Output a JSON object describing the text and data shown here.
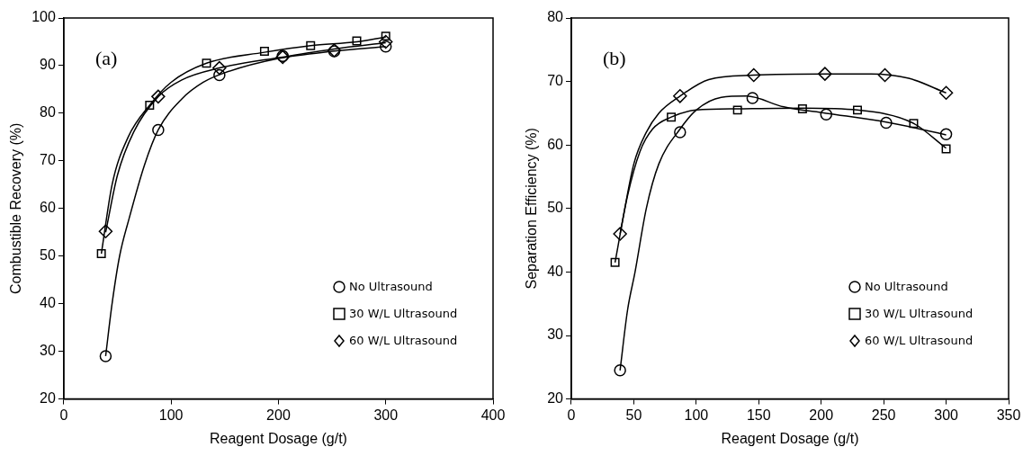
{
  "chart_data": [
    {
      "type": "scatter",
      "xlabel": "Reagent Dosage (g/t)",
      "ylabel": "Combustible Recovery (%)",
      "annotations": [
        "(a)"
      ],
      "xlim": [
        0,
        400
      ],
      "xticks": [
        0,
        100,
        200,
        300,
        400
      ],
      "ylim": [
        20,
        100
      ],
      "yticks": [
        20,
        30,
        40,
        50,
        60,
        70,
        80,
        90,
        100
      ],
      "grid": false,
      "legend": "bottom right",
      "series": [
        {
          "name": "No Ultrasound",
          "color": "#000000",
          "marker": "circle",
          "x": [
            39,
            88,
            145,
            204,
            252,
            300
          ],
          "values": [
            29,
            76.5,
            88,
            92,
            93,
            94
          ]
        },
        {
          "name": "30 W/L Ultrasound",
          "color": "#000000",
          "marker": "square",
          "x": [
            35,
            80,
            133,
            187,
            230,
            273,
            300
          ],
          "values": [
            50.5,
            81.7,
            90.5,
            93,
            94.2,
            95.2,
            96.2
          ]
        },
        {
          "name": "60 W/L Ultrasound",
          "color": "#000000",
          "marker": "diamond",
          "x": [
            39,
            88,
            145,
            204,
            252,
            300
          ],
          "values": [
            55.2,
            83.5,
            89.5,
            91.8,
            93.2,
            95
          ]
        },
        {
          "type": "line",
          "color": "#000000",
          "marker": "none",
          "x": [
            39,
            45,
            52,
            61,
            75,
            88,
            110,
            130,
            150,
            200,
            250,
            300
          ],
          "values": [
            29,
            40,
            50,
            58,
            69,
            76.5,
            83,
            86.5,
            88.5,
            91.5,
            93,
            94
          ]
        },
        {
          "type": "line",
          "color": "#000000",
          "marker": "none",
          "x": [
            35,
            45,
            60,
            80,
            100,
            133,
            187,
            230,
            273,
            300
          ],
          "values": [
            50.5,
            65,
            75,
            81.7,
            86.5,
            90.5,
            92.8,
            94.2,
            95,
            96
          ]
        },
        {
          "type": "line",
          "color": "#000000",
          "marker": "none",
          "x": [
            39,
            50,
            65,
            88,
            110,
            145,
            204,
            252,
            300
          ],
          "values": [
            55,
            67,
            76,
            83.5,
            87,
            89.5,
            91.8,
            93.5,
            94.8
          ]
        }
      ]
    },
    {
      "type": "scatter",
      "xlabel": "Reagent Dosage (g/t)",
      "ylabel": "Separation Efficiency (%)",
      "annotations": [
        "(b)"
      ],
      "xlim": [
        0,
        350
      ],
      "xticks": [
        0,
        50,
        100,
        150,
        200,
        250,
        300,
        350
      ],
      "ylim": [
        20,
        80
      ],
      "yticks": [
        20,
        30,
        40,
        50,
        60,
        70,
        80
      ],
      "grid": false,
      "legend": "bottom right",
      "series": [
        {
          "name": "No Ultrasound",
          "color": "#000000",
          "marker": "circle",
          "x": [
            39,
            87,
            145,
            204,
            252,
            300
          ],
          "values": [
            24.5,
            62,
            67.4,
            64.8,
            63.5,
            61.7
          ]
        },
        {
          "name": "30 W/L Ultrasound",
          "color": "#000000",
          "marker": "square",
          "x": [
            35,
            80,
            133,
            185,
            229,
            274,
            300
          ],
          "values": [
            41.5,
            64.4,
            65.5,
            65.7,
            65.5,
            63.4,
            59.4
          ]
        },
        {
          "name": "60 W/L Ultrasound",
          "color": "#000000",
          "marker": "diamond",
          "x": [
            39,
            87,
            146,
            203,
            251,
            300
          ],
          "values": [
            46,
            67.7,
            71,
            71.2,
            71,
            68.2
          ]
        },
        {
          "type": "line",
          "color": "#000000",
          "marker": "none",
          "x": [
            39,
            45,
            51,
            60,
            70,
            87,
            100,
            120,
            140,
            170,
            204,
            252,
            300
          ],
          "values": [
            24.5,
            34,
            40,
            50,
            57,
            62.5,
            65.5,
            67.5,
            67.7,
            66,
            65,
            63.6,
            61.6
          ]
        },
        {
          "type": "line",
          "color": "#000000",
          "marker": "none",
          "x": [
            35,
            45,
            55,
            65,
            80,
            100,
            133,
            186,
            229,
            273,
            300
          ],
          "values": [
            41.5,
            52,
            59,
            62.5,
            64.4,
            65.5,
            65.7,
            65.8,
            65.5,
            63.5,
            59.5
          ]
        },
        {
          "type": "line",
          "color": "#000000",
          "marker": "none",
          "x": [
            39,
            50,
            60,
            70,
            87,
            110,
            146,
            204,
            240,
            270,
            300
          ],
          "values": [
            46,
            57,
            62,
            65,
            67.7,
            70.3,
            71,
            71.2,
            71.2,
            70.5,
            68.2
          ]
        }
      ]
    }
  ]
}
